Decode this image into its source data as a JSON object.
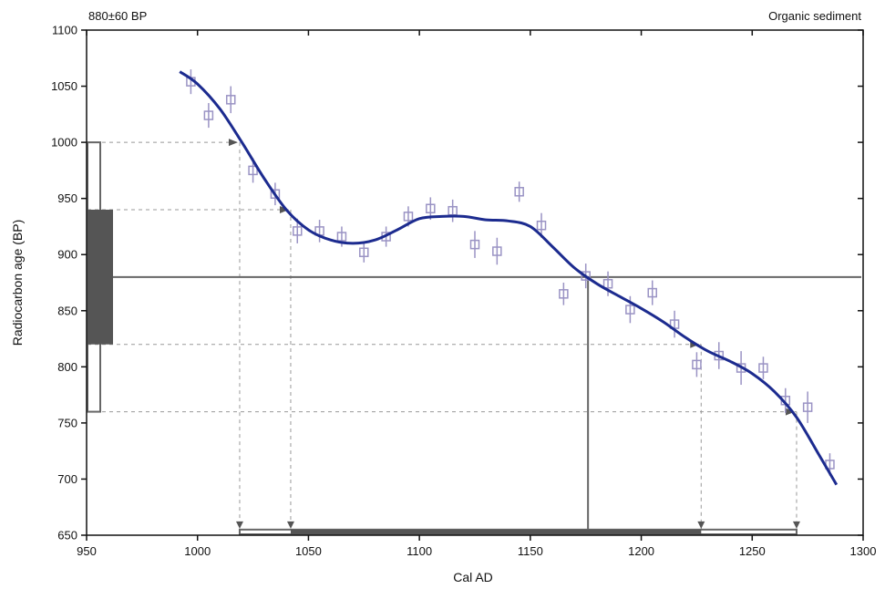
{
  "header": {
    "sample_label": "880±60 BP",
    "material_label": "Organic sediment"
  },
  "chart_data": {
    "type": "scatter",
    "title": "",
    "xlabel": "Cal AD",
    "ylabel": "Radiocarbon age (BP)",
    "xlim": [
      950,
      1300
    ],
    "ylim": [
      650,
      1100
    ],
    "x_ticks": [
      950,
      1000,
      1050,
      1100,
      1150,
      1200,
      1250,
      1300
    ],
    "y_ticks": [
      650,
      700,
      750,
      800,
      850,
      900,
      950,
      1000,
      1050,
      1100
    ],
    "grid": false,
    "measured_age": {
      "value": 880,
      "error": 60,
      "one_sigma": [
        820,
        940
      ],
      "two_sigma": [
        760,
        1000
      ]
    },
    "calibration_curve": {
      "x": [
        992,
        1000,
        1010,
        1020,
        1030,
        1040,
        1050,
        1060,
        1070,
        1080,
        1090,
        1100,
        1110,
        1120,
        1130,
        1140,
        1150,
        1160,
        1170,
        1180,
        1190,
        1200,
        1210,
        1220,
        1230,
        1240,
        1250,
        1260,
        1270,
        1280,
        1288
      ],
      "y": [
        1063,
        1052,
        1030,
        1000,
        968,
        940,
        922,
        913,
        910,
        913,
        922,
        932,
        934,
        934,
        931,
        930,
        925,
        907,
        888,
        874,
        863,
        852,
        840,
        826,
        814,
        805,
        794,
        778,
        755,
        722,
        695
      ]
    },
    "data_points": {
      "x": [
        997,
        1005,
        1015,
        1025,
        1035,
        1045,
        1055,
        1065,
        1075,
        1085,
        1095,
        1105,
        1115,
        1125,
        1135,
        1145,
        1155,
        1165,
        1175,
        1185,
        1195,
        1205,
        1215,
        1225,
        1235,
        1245,
        1255,
        1265,
        1275,
        1285
      ],
      "y": [
        1054,
        1024,
        1038,
        975,
        954,
        921,
        921,
        916,
        902,
        916,
        934,
        941,
        939,
        909,
        903,
        956,
        926,
        865,
        881,
        874,
        851,
        866,
        838,
        802,
        810,
        799,
        799,
        770,
        764,
        713
      ],
      "error": [
        11,
        11,
        12,
        11,
        10,
        11,
        10,
        9,
        9,
        9,
        9,
        10,
        10,
        12,
        12,
        9,
        11,
        10,
        11,
        11,
        12,
        11,
        12,
        11,
        12,
        15,
        10,
        11,
        14,
        10
      ]
    },
    "intercepts": {
      "one_sigma_cal": [
        1042,
        1227
      ],
      "two_sigma_cal": [
        1019,
        1270
      ],
      "median_cal": 1176
    },
    "colors": {
      "curve": "#1c2b8f",
      "points": "#9a93c4",
      "range_dark": "#555555",
      "range_outline": "#666666",
      "guide": "#999999"
    }
  }
}
